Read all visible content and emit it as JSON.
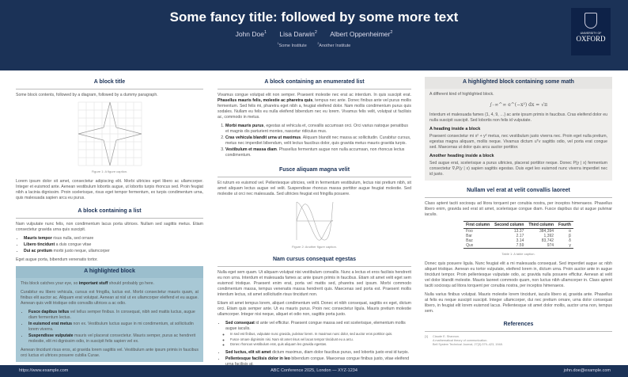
{
  "header": {
    "title": "Some fancy title: followed by some more text",
    "authors": [
      {
        "name": "John Doe",
        "sup": "1"
      },
      {
        "name": "Lisa Darwin",
        "sup": "2"
      },
      {
        "name": "Albert Oppenheimer",
        "sup": "2"
      }
    ],
    "institutes": [
      {
        "sup": "1",
        "name": "Some Institute"
      },
      {
        "sup": "2",
        "name": "Another Institute"
      }
    ],
    "logo": {
      "line1": "UNIVERSITY OF",
      "line2": "OXFORD"
    }
  },
  "col1": {
    "b1_title": "A block title",
    "b1_intro": "Some block contents, followed by a diagram, followed by a dummy paragraph.",
    "fig1_caption": "Figure 1: A figure caption.",
    "b1_para": "Lorem ipsum dolor sit amet, consectetur adipiscing elit. Morbi ultricies eget libero ac ullamcorper. Integer et euismod ante. Aenean vestibulum lobortis augue, ut lobortis turpis rhoncus sed. Proin feugiat nibh a lacinia dignissim. Proin scelerisque, risus eget tempor fermentum, ex turpis condimentum urna, quis malesuada sapien arcu eu purus.",
    "b2_title": "A block containing a list",
    "b2_intro": "Nam vulputate nunc felis, non condimentum lacus porta ultrices. Nullam sed sagittis metus. Etiam consectetur gravida urna quis suscipit.",
    "b2_items": [
      {
        "bold": "Mauris tempor",
        "text": " risus nulla, sed ornare"
      },
      {
        "bold": "Libero tincidunt",
        "text": " a duis congue vitae"
      },
      {
        "bold": "Dui ac pretium",
        "text": " morbi justo neque, ullamcorper"
      }
    ],
    "b2_outro": "Eget augue porta, bibendum venenatis tortor.",
    "b3_title": "A highlighted block",
    "b3_p1_pre": "This block catches your eye, so ",
    "b3_p1_bold": "important stuff",
    "b3_p1_post": " should probably go here.",
    "b3_p2": "Curabitur eu libero vehicula, cursus est fringilla, luctus est. Morbi consectetur mauris quam, at finibus elit auctor ac. Aliquam erat volutpat. Aenean at nisl ut ex ullamcorper eleifend et eu augue. Aenean quis velit tristique odio convallis ultrices a ac odio.",
    "b3_items": [
      {
        "bold": "Fusce dapibus tellus",
        "text": " vel tellus semper finibus. In consequat, nibh sed mattis luctus, augue diam fermentum lectus."
      },
      {
        "bold": "In euismod erat metus",
        "text": " non ex. Vestibulum luctus augue in mi condimentum, at sollicitudin lorem viverra."
      },
      {
        "bold": "Suspendisse vulputate",
        "text": " mauris vel placerat consectetur. Mauris semper, purus ac hendrerit molestie, elit mi dignissim odio, in suscipit felis sapien vel ex."
      }
    ],
    "b3_p3": "Aenean tincidunt risus eros, at gravida lorem sagittis vel. Vestibulum ante ipsum primis in faucibus orci luctus et ultrices posuere cubilia Curae."
  },
  "col2": {
    "b1_title": "A block containing an enumerated list",
    "b1_p_pre": "Vivamus congue volutpat elit non semper. Praesent molestie nec erat ac interdum. In quis suscipit erat. ",
    "b1_p_bold": "Phasellus mauris felis, molestie ac pharetra quis",
    "b1_p_post": ", tempus nec ante. Donec finibus ante vel purus mollis fermentum. Sed felis mi, pharetra eget nibh a, feugiat eleifend dolor. Nam mollis condimentum purus quis sodales. Nullam eu felis eu nulla eleifend bibendum nec eu lorem. Vivamus felis velit, volutpat ut facilisis ac, commodo in metus.",
    "b1_items": [
      {
        "bold": "Morbi mauris purus",
        "text": ", egestas at vehicula et, convallis accumsan orci. Orci varius natoque penatibus et magnis dis parturient montes, nascetur ridiculus mus."
      },
      {
        "bold": "Cras vehicula blandit urna ut maximus",
        "text": ". Aliquam blandit nec massa ac sollicitudin. Curabitur cursus, metus nec imperdiet bibendum, velit lectus faucibus dolor, quis gravida metus mauris gravida turpis."
      },
      {
        "bold": "Vestibulum et massa diam",
        "text": ". Phasellus fermentum augue non nulla accumsan, non rhoncus lectus condimentum."
      }
    ],
    "b2_title": "Fusce aliquam magna velit",
    "b2_p": "Et rutrum ex euismod vel. Pellentesque ultricies, velit in fermentum vestibulum, lectus nisi pretium nibh, sit amet aliquam lectus augue vel velit. Suspendisse rhoncus massa porttitor augue feugiat molestie. Sed molestie ut orci nec malesuada. Sed ultricies feugiat est fringilla posuere.",
    "fig2_caption": "Figure 2: Another figure caption.",
    "b3_title": "Nam cursus consequat egestas",
    "b3_p1": "Nulla eget sem quam. Ut aliquam volutpat nisi vestibulum convallis. Nunc a lectus et eros facilisis hendrerit eu non urna. Interdum et malesuada fames ac ante ipsum primis in faucibus. Etiam sit amet velit eget sem euismod tristique. Praesent enim erat, porta vel mattis sed, pharetra sed ipsum. Morbi commodo condimentum massa, tempus venenatis massa hendrerit quis. Maecenas sed porta est. Praesent mollis interdum lectus, sit amet sollicitudin risus tincidunt non.",
    "b3_p2": "Etiam sit amet tempus lorem, aliquet condimentum velit. Donec et nibh consequat, sagittis ex eget, dictum orci. Etiam quis semper ante. Ut eu mauris purus. Proin nec consectetur ligula. Mauris pretium molestie ullamcorper. Integer nisi neque, aliquet et odio non, sagittis porta justo.",
    "b3_item1": {
      "bold": "Sed consequat",
      "text": " id ante vel efficitur. Praesent congue massa sed est scelerisque, elementum mollis augue iaculis.",
      "sub": [
        "In sed est finibus, vulputate nunc gravida, pulvinar lorem. In maximus nunc dolor, sed auctor eros porttitor quis.",
        "Fusce ornare dignissim nisi. Nam sit amet risus vel lacus tempor tincidunt eu a arcu.",
        "Donec rhoncus vestibulum erat, quis aliquam leo gravida egestas."
      ]
    },
    "b3_item2": {
      "bold": "Sed luctus, elit sit amet",
      "text": " dictum maximus, diam dolor faucibus purus, sed lobortis justo erat id turpis."
    },
    "b3_item3": {
      "bold": "Pellentesque facilisis dolor in leo",
      "text": " bibendum congue. Maecenas congue finibus justo, vitae eleifend urna facilisis at."
    }
  },
  "col3": {
    "b1_title": "A highlighted block containing some math",
    "b1_intro": "A different kind of highlighted block.",
    "math": "∫₋∞^∞ e^(−x²) dx = √π",
    "b1_p1": "Interdum et malesuada fames {1, 4, 9, …} ac ante ipsum primis in faucibus. Cras eleifend dolor eu nulla suscipit suscipit. Sed lobortis non felis id vulputate.",
    "h1": "A heading inside a block",
    "b1_p2": "Praesent consectetur mi x² + y² metus, nec vestibulum justo viverra nec. Proin eget nulla pretium, egestas magna aliquam, mollis neque. Vivamus dictum uᵀv sagittis odio, vel porta erat congue sed. Maecenas ut dolor quis arcu auctor porttitor.",
    "h2": "Another heading inside a block",
    "b1_p3": "Sed augue erat, scelerisque a purus ultricies, placerat porttitor neque. Donec P(y | x) fermentum consectetur ∇ₓP(y | x) sapien sagittis egestas. Duis eget leo euismod nunc viverra imperdiet nec id justo.",
    "b2_title": "Nullam vel erat at velit convallis laoreet",
    "b2_p1": "Class aptent taciti sociosqu ad litora torquent per conubia nostra, per inceptos himenaeos. Phasellus libero enim, gravida sed erat sit amet, scelerisque congue diam. Fusce dapibus dui ut augue pulvinar iaculis.",
    "table": {
      "headers": [
        "First column",
        "Second column",
        "Third column",
        "Fourth"
      ],
      "rows": [
        [
          "Foo",
          "13.37",
          "384,394",
          "α"
        ],
        [
          "Bar",
          "2.17",
          "1,392",
          "β"
        ],
        [
          "Baz",
          "3.14",
          "83,742",
          "δ"
        ],
        [
          "Qux",
          "7.59",
          "974",
          "γ"
        ]
      ],
      "caption": "Table 1: A table caption."
    },
    "b2_p2": "Donec quis posuere ligula. Nunc feugiat elit a mi malesuada consequat. Sed imperdiet augue ac nibh aliquet tristique. Aenean eu tortor vulputate, eleifend lorem in, dictum urna. Proin auctor ante in augue tincidunt tempor. Proin pellentesque vulputate odio, ac gravida nulla posuere efficitur. Aenean at velit vel dolor blandit molestie. Mauris laoreet commodo quam, non luctus nibh ullamcorper in. Class aptent taciti sociosqu ad litora torquent per conubia nostra, per inceptos himenaeos.",
    "b2_p3": "Nulla varius finibus volutpat. Mauris molestie lorem tincidunt, iaculis libero at, gravida ante. Phasellus at felis eu neque suscipit suscipit. Integer ullamcorper, dui nec pretium ornare, urna dolor consequat libero, in feugiat elit lorem euismod lacus. Pellentesque sit amet dolor mollis, auctor urna non, tempus sem.",
    "refs_title": "References",
    "ref1": {
      "num": "[1]",
      "author": "Claude E. Shannon.",
      "title": "A mathematical theory of communication.",
      "journal": "Bell System Technical Journal, 27(3):379–423, 1948."
    }
  },
  "footer": {
    "left": "https://www.example.com",
    "center": "ABC Conference 2025, London — XYZ-1234",
    "right": "john.doe@example.com"
  }
}
